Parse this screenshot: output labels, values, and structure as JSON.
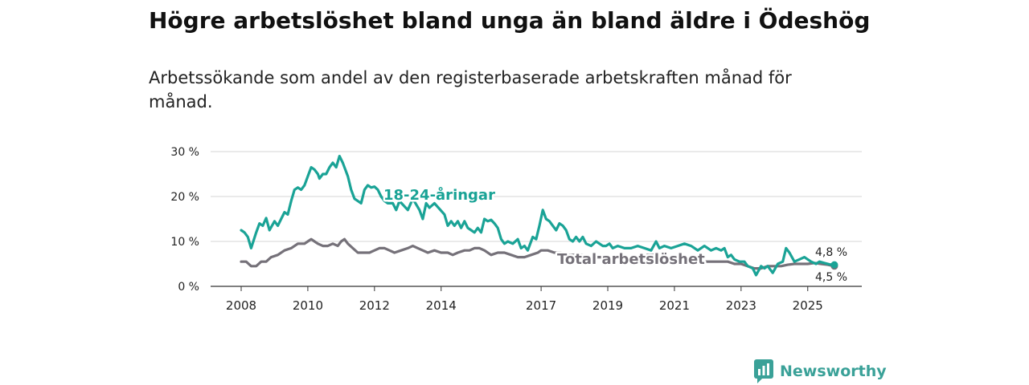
{
  "title": "Högre arbetslöshet bland unga än bland äldre i Ödeshög",
  "subtitle": "Arbetssökande som andel av den registerbaserade arbetskraften månad för månad.",
  "brand": {
    "name": "Newsworthy",
    "color": "#3aa198",
    "icon": "newsworthy-logo-icon"
  },
  "chart_data": {
    "type": "line",
    "xlabel": "",
    "ylabel": "",
    "xlim": [
      2008,
      2025.85
    ],
    "ylim": [
      0,
      30
    ],
    "yticks": [
      0,
      10,
      20,
      30
    ],
    "ytick_labels": [
      "0 %",
      "10 %",
      "20 %",
      "30 %"
    ],
    "xticks": [
      2008,
      2010,
      2012,
      2014,
      2017,
      2019,
      2021,
      2023,
      2025
    ],
    "xtick_labels": [
      "2008",
      "2010",
      "2012",
      "2014",
      "2017",
      "2019",
      "2021",
      "2023",
      "2025"
    ],
    "grid": true,
    "series": [
      {
        "name": "18-24-åringar",
        "label": "18-24-åringar",
        "color": "#1aa396",
        "end_label": "4,8 %",
        "points": [
          [
            2008.0,
            12.5
          ],
          [
            2008.1,
            12.0
          ],
          [
            2008.2,
            11.0
          ],
          [
            2008.3,
            8.5
          ],
          [
            2008.45,
            12.0
          ],
          [
            2008.55,
            14.0
          ],
          [
            2008.65,
            13.5
          ],
          [
            2008.75,
            15.2
          ],
          [
            2008.85,
            12.5
          ],
          [
            2009.0,
            14.5
          ],
          [
            2009.1,
            13.5
          ],
          [
            2009.2,
            15.0
          ],
          [
            2009.3,
            16.5
          ],
          [
            2009.4,
            16.0
          ],
          [
            2009.5,
            19.0
          ],
          [
            2009.6,
            21.5
          ],
          [
            2009.7,
            22.0
          ],
          [
            2009.8,
            21.5
          ],
          [
            2009.9,
            22.5
          ],
          [
            2010.0,
            24.5
          ],
          [
            2010.1,
            26.5
          ],
          [
            2010.2,
            26.0
          ],
          [
            2010.3,
            25.0
          ],
          [
            2010.35,
            24.0
          ],
          [
            2010.45,
            25.0
          ],
          [
            2010.55,
            25.0
          ],
          [
            2010.65,
            26.5
          ],
          [
            2010.75,
            27.5
          ],
          [
            2010.85,
            26.5
          ],
          [
            2010.95,
            29.0
          ],
          [
            2011.05,
            27.5
          ],
          [
            2011.2,
            24.5
          ],
          [
            2011.3,
            21.5
          ],
          [
            2011.4,
            19.5
          ],
          [
            2011.5,
            19.0
          ],
          [
            2011.6,
            18.5
          ],
          [
            2011.7,
            21.5
          ],
          [
            2011.8,
            22.5
          ],
          [
            2011.9,
            22.0
          ],
          [
            2012.0,
            22.2
          ],
          [
            2012.1,
            21.5
          ],
          [
            2012.2,
            20.0
          ],
          [
            2012.3,
            19.0
          ],
          [
            2012.4,
            18.5
          ],
          [
            2012.55,
            18.5
          ],
          [
            2012.65,
            17.0
          ],
          [
            2012.75,
            19.0
          ],
          [
            2013.0,
            17.0
          ],
          [
            2013.15,
            19.5
          ],
          [
            2013.35,
            17.0
          ],
          [
            2013.45,
            15.0
          ],
          [
            2013.55,
            18.5
          ],
          [
            2013.65,
            17.5
          ],
          [
            2013.8,
            18.5
          ],
          [
            2014.1,
            16.0
          ],
          [
            2014.2,
            13.5
          ],
          [
            2014.3,
            14.5
          ],
          [
            2014.4,
            13.5
          ],
          [
            2014.5,
            14.5
          ],
          [
            2014.6,
            13.0
          ],
          [
            2014.7,
            14.5
          ],
          [
            2014.8,
            13.0
          ],
          [
            2014.9,
            12.5
          ],
          [
            2015.0,
            12.0
          ],
          [
            2015.1,
            13.0
          ],
          [
            2015.2,
            12.0
          ],
          [
            2015.3,
            15.0
          ],
          [
            2015.4,
            14.5
          ],
          [
            2015.5,
            14.8
          ],
          [
            2015.6,
            14.0
          ],
          [
            2015.7,
            13.0
          ],
          [
            2015.8,
            10.5
          ],
          [
            2015.9,
            9.5
          ],
          [
            2016.0,
            10.0
          ],
          [
            2016.15,
            9.5
          ],
          [
            2016.3,
            10.5
          ],
          [
            2016.4,
            8.5
          ],
          [
            2016.5,
            9.0
          ],
          [
            2016.6,
            8.0
          ],
          [
            2016.75,
            11.0
          ],
          [
            2016.85,
            10.5
          ],
          [
            2016.95,
            13.5
          ],
          [
            2017.05,
            17.0
          ],
          [
            2017.15,
            15.0
          ],
          [
            2017.25,
            14.5
          ],
          [
            2017.35,
            13.5
          ],
          [
            2017.45,
            12.5
          ],
          [
            2017.55,
            14.0
          ],
          [
            2017.65,
            13.5
          ],
          [
            2017.75,
            12.5
          ],
          [
            2017.85,
            10.5
          ],
          [
            2017.95,
            10.0
          ],
          [
            2018.05,
            11.0
          ],
          [
            2018.15,
            10.0
          ],
          [
            2018.25,
            11.0
          ],
          [
            2018.35,
            9.5
          ],
          [
            2018.5,
            9.0
          ],
          [
            2018.65,
            10.0
          ],
          [
            2018.75,
            9.5
          ],
          [
            2018.85,
            9.0
          ],
          [
            2018.95,
            9.0
          ],
          [
            2019.05,
            9.5
          ],
          [
            2019.15,
            8.5
          ],
          [
            2019.3,
            9.0
          ],
          [
            2019.5,
            8.5
          ],
          [
            2019.7,
            8.5
          ],
          [
            2019.9,
            9.0
          ],
          [
            2020.1,
            8.5
          ],
          [
            2020.3,
            8.0
          ],
          [
            2020.45,
            10.0
          ],
          [
            2020.55,
            8.5
          ],
          [
            2020.7,
            9.0
          ],
          [
            2020.9,
            8.5
          ],
          [
            2021.1,
            9.0
          ],
          [
            2021.3,
            9.5
          ],
          [
            2021.5,
            9.0
          ],
          [
            2021.7,
            8.0
          ],
          [
            2021.9,
            9.0
          ],
          [
            2022.1,
            8.0
          ],
          [
            2022.25,
            8.5
          ],
          [
            2022.4,
            8.0
          ],
          [
            2022.5,
            8.5
          ],
          [
            2022.6,
            6.5
          ],
          [
            2022.7,
            7.0
          ],
          [
            2022.8,
            6.0
          ],
          [
            2022.95,
            5.5
          ],
          [
            2023.1,
            5.5
          ],
          [
            2023.2,
            4.5
          ],
          [
            2023.35,
            4.0
          ],
          [
            2023.45,
            2.5
          ],
          [
            2023.6,
            4.5
          ],
          [
            2023.7,
            4.0
          ],
          [
            2023.8,
            4.5
          ],
          [
            2023.95,
            3.0
          ],
          [
            2024.1,
            5.0
          ],
          [
            2024.25,
            5.5
          ],
          [
            2024.35,
            8.5
          ],
          [
            2024.45,
            7.5
          ],
          [
            2024.6,
            5.5
          ],
          [
            2024.75,
            6.0
          ],
          [
            2024.9,
            6.5
          ],
          [
            2025.0,
            6.0
          ],
          [
            2025.1,
            5.5
          ],
          [
            2025.25,
            5.0
          ],
          [
            2025.35,
            5.5
          ],
          [
            2025.5,
            5.2
          ],
          [
            2025.65,
            4.9
          ],
          [
            2025.8,
            4.8
          ]
        ]
      },
      {
        "name": "Total arbetslöshet",
        "label": "Total arbetslöshet",
        "color": "#757179",
        "end_label": "4,5 %",
        "points": [
          [
            2008.0,
            5.5
          ],
          [
            2008.15,
            5.5
          ],
          [
            2008.3,
            4.5
          ],
          [
            2008.45,
            4.5
          ],
          [
            2008.6,
            5.5
          ],
          [
            2008.75,
            5.5
          ],
          [
            2008.9,
            6.5
          ],
          [
            2009.1,
            7.0
          ],
          [
            2009.3,
            8.0
          ],
          [
            2009.5,
            8.5
          ],
          [
            2009.7,
            9.5
          ],
          [
            2009.9,
            9.5
          ],
          [
            2010.0,
            10.0
          ],
          [
            2010.1,
            10.5
          ],
          [
            2010.2,
            10.0
          ],
          [
            2010.3,
            9.5
          ],
          [
            2010.45,
            9.0
          ],
          [
            2010.6,
            9.0
          ],
          [
            2010.75,
            9.5
          ],
          [
            2010.9,
            9.0
          ],
          [
            2011.0,
            10.0
          ],
          [
            2011.1,
            10.5
          ],
          [
            2011.2,
            9.5
          ],
          [
            2011.35,
            8.5
          ],
          [
            2011.5,
            7.5
          ],
          [
            2011.7,
            7.5
          ],
          [
            2011.85,
            7.5
          ],
          [
            2012.0,
            8.0
          ],
          [
            2012.15,
            8.5
          ],
          [
            2012.3,
            8.5
          ],
          [
            2012.45,
            8.0
          ],
          [
            2012.6,
            7.5
          ],
          [
            2012.8,
            8.0
          ],
          [
            2013.0,
            8.5
          ],
          [
            2013.15,
            9.0
          ],
          [
            2013.3,
            8.5
          ],
          [
            2013.45,
            8.0
          ],
          [
            2013.6,
            7.5
          ],
          [
            2013.8,
            8.0
          ],
          [
            2014.0,
            7.5
          ],
          [
            2014.2,
            7.5
          ],
          [
            2014.35,
            7.0
          ],
          [
            2014.5,
            7.5
          ],
          [
            2014.7,
            8.0
          ],
          [
            2014.85,
            8.0
          ],
          [
            2015.0,
            8.5
          ],
          [
            2015.15,
            8.5
          ],
          [
            2015.3,
            8.0
          ],
          [
            2015.5,
            7.0
          ],
          [
            2015.7,
            7.5
          ],
          [
            2015.9,
            7.5
          ],
          [
            2016.1,
            7.0
          ],
          [
            2016.3,
            6.5
          ],
          [
            2016.5,
            6.5
          ],
          [
            2016.7,
            7.0
          ],
          [
            2016.9,
            7.5
          ],
          [
            2017.0,
            8.0
          ],
          [
            2017.2,
            8.0
          ],
          [
            2017.4,
            7.5
          ],
          [
            2017.6,
            7.5
          ],
          [
            2017.8,
            7.0
          ],
          [
            2018.0,
            7.0
          ],
          [
            2018.2,
            7.0
          ],
          [
            2018.4,
            6.5
          ],
          [
            2018.6,
            6.5
          ],
          [
            2018.8,
            6.5
          ],
          [
            2019.0,
            6.5
          ],
          [
            2019.2,
            6.5
          ],
          [
            2019.4,
            6.5
          ],
          [
            2019.6,
            6.5
          ],
          [
            2019.8,
            6.5
          ],
          [
            2020.0,
            6.5
          ],
          [
            2020.2,
            7.0
          ],
          [
            2020.4,
            7.0
          ],
          [
            2020.6,
            6.5
          ],
          [
            2020.8,
            6.5
          ],
          [
            2021.0,
            6.0
          ],
          [
            2021.2,
            6.0
          ],
          [
            2021.4,
            6.0
          ],
          [
            2021.6,
            5.5
          ],
          [
            2021.8,
            5.5
          ],
          [
            2022.0,
            5.5
          ],
          [
            2022.2,
            5.5
          ],
          [
            2022.4,
            5.5
          ],
          [
            2022.6,
            5.5
          ],
          [
            2022.8,
            5.0
          ],
          [
            2023.0,
            5.0
          ],
          [
            2023.2,
            4.5
          ],
          [
            2023.4,
            4.0
          ],
          [
            2023.6,
            4.0
          ],
          [
            2023.8,
            4.5
          ],
          [
            2024.0,
            4.5
          ],
          [
            2024.2,
            4.5
          ],
          [
            2024.4,
            4.8
          ],
          [
            2024.6,
            5.0
          ],
          [
            2024.8,
            5.0
          ],
          [
            2025.0,
            5.0
          ],
          [
            2025.2,
            5.2
          ],
          [
            2025.4,
            5.0
          ],
          [
            2025.6,
            4.8
          ],
          [
            2025.8,
            4.5
          ]
        ]
      }
    ]
  }
}
